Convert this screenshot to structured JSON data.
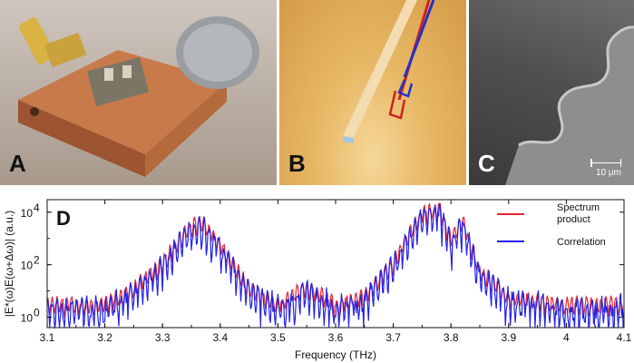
{
  "panels": {
    "a": {
      "letter": "A"
    },
    "b": {
      "letter": "B"
    },
    "c": {
      "letter": "C",
      "scale_bar": "10 μm"
    }
  },
  "colors": {
    "spectrum": "#e8242c",
    "correlation": "#2323e6"
  },
  "chart_data": {
    "type": "line",
    "panel_letter": "D",
    "title": "",
    "xlabel": "Frequency (THz)",
    "ylabel": "|E*(ω)E(ω+Δω)| (a.u.)",
    "xlim": [
      3.1,
      4.1
    ],
    "ylim": [
      0.4,
      30000
    ],
    "yscale": "log",
    "x_ticks": [
      "3.1",
      "3.2",
      "3.3",
      "3.4",
      "3.5",
      "3.6",
      "3.7",
      "3.8",
      "3.9",
      "4",
      "4.1"
    ],
    "y_ticks": [
      {
        "base": "10",
        "exp": "0",
        "value": 1
      },
      {
        "base": "10",
        "exp": "2",
        "value": 100
      },
      {
        "base": "10",
        "exp": "4",
        "value": 10000
      }
    ],
    "grid": false,
    "legend_position": "top-right",
    "series": [
      {
        "name": "Spectrum product",
        "legend_lines": [
          "Spectrum",
          "product"
        ]
      },
      {
        "name": "Correlation",
        "legend_lines": [
          "Correlation"
        ]
      }
    ],
    "envelope": {
      "x": [
        3.1,
        3.2,
        3.25,
        3.3,
        3.33,
        3.35,
        3.37,
        3.39,
        3.42,
        3.45,
        3.5,
        3.55,
        3.6,
        3.65,
        3.7,
        3.73,
        3.75,
        3.77,
        3.78,
        3.8,
        3.82,
        3.85,
        3.9,
        4.0,
        4.1
      ],
      "y": [
        5,
        5,
        20,
        200,
        1500,
        5000,
        6000,
        2000,
        200,
        20,
        5,
        25,
        5,
        10,
        200,
        3000,
        15000,
        20000,
        25000,
        1500,
        8000,
        100,
        10,
        5,
        5
      ]
    }
  }
}
